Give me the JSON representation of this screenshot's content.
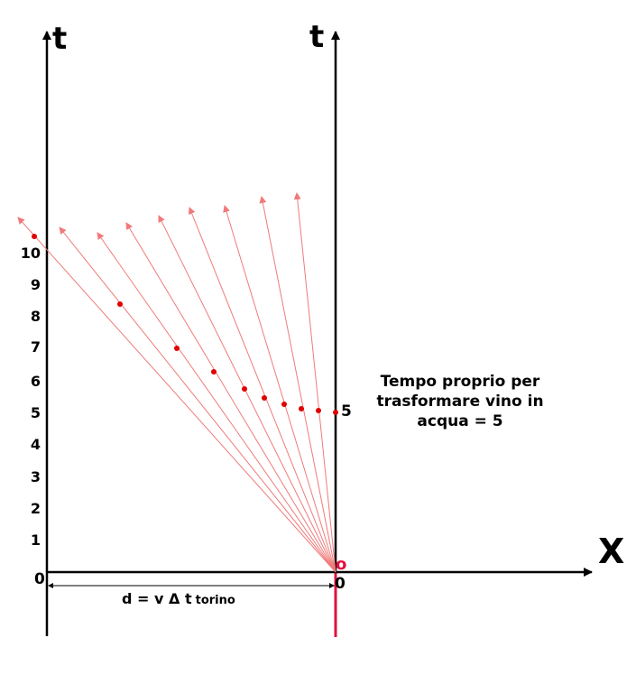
{
  "diagram": {
    "axes": {
      "t_left_label": "t",
      "t_right_label": "t",
      "x_label": "X",
      "origin_left_label": "0",
      "origin_right_label": "0",
      "o_marker": "o",
      "five_label": "5"
    },
    "tick_labels": [
      "1",
      "2",
      "3",
      "4",
      "5",
      "6",
      "7",
      "8",
      "9",
      "10"
    ],
    "note_lines": [
      "Tempo proprio per",
      "trasformare vino in",
      "acqua = 5"
    ],
    "distance_label": {
      "main": "d = v Δ t",
      "sub": "torino"
    },
    "colors": {
      "axis": "#000000",
      "worldline": "#e01040",
      "ray": "#f07a7a",
      "dot": "#e00000"
    }
  }
}
